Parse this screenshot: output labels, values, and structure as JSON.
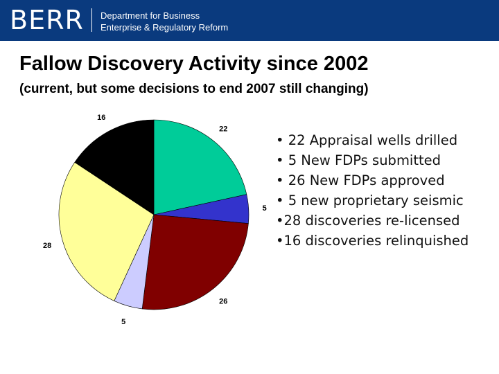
{
  "header": {
    "logo": "BERR",
    "dept_line1": "Department for Business",
    "dept_line2": "Enterprise & Regulatory Reform",
    "bg_color": "#0a3a7e"
  },
  "title": "Fallow Discovery Activity since 2002",
  "subtitle": "(current, but some decisions to end 2007 still changing)",
  "bullets": [
    "• 22 Appraisal wells drilled",
    "• 5  New FDPs submitted",
    "• 26 New FDPs approved",
    "• 5 new proprietary seismic",
    "•28 discoveries re-licensed",
    "•16 discoveries relinquished"
  ],
  "chart_data": {
    "type": "pie",
    "values": [
      22,
      5,
      26,
      5,
      28,
      16
    ],
    "labels": [
      "22",
      "5",
      "26",
      "5",
      "28",
      "16"
    ],
    "colors": [
      "#00cc99",
      "#3333cc",
      "#800000",
      "#ccccff",
      "#ffff99",
      "#000000"
    ],
    "start": "12 o'clock",
    "direction": "clockwise"
  }
}
